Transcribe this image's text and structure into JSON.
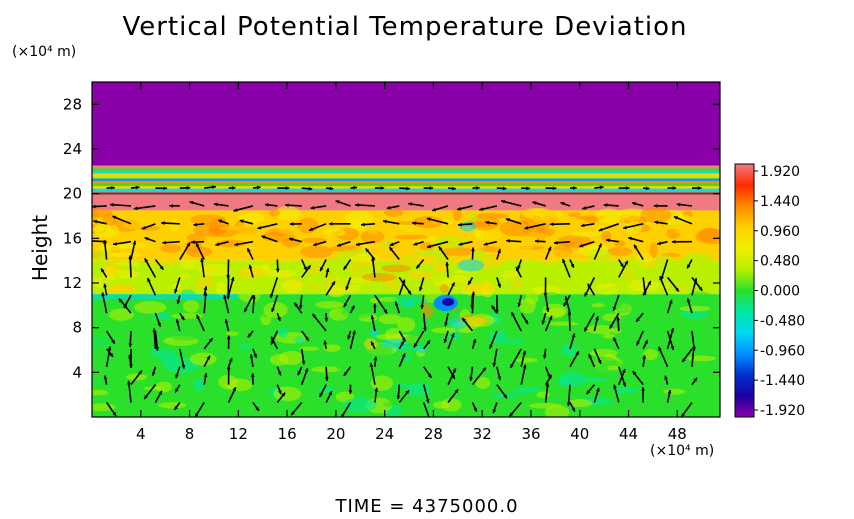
{
  "chart_data": {
    "type": "heatmap",
    "title": "Vertical Potential Temperature Deviation",
    "ylabel": "Height",
    "x_unit": "(×10⁴ m)",
    "y_unit": "(×10⁴ m)",
    "footer": "TIME  =  4375000.0",
    "xlim": [
      0,
      51.5
    ],
    "ylim": [
      0,
      30
    ],
    "x_ticks": [
      4,
      8,
      12,
      16,
      20,
      24,
      28,
      32,
      36,
      40,
      44,
      48
    ],
    "y_ticks": [
      4,
      8,
      12,
      16,
      20,
      24,
      28
    ],
    "colorbar": {
      "range": [
        -1.92,
        1.92
      ],
      "labels": [
        "1.920",
        "1.440",
        "0.960",
        "0.480",
        "0.000",
        "-0.480",
        "-0.960",
        "-1.440",
        "-1.920"
      ],
      "colors": [
        "#f07a82",
        "#ff2a00",
        "#ff8a00",
        "#ffd000",
        "#f0f000",
        "#b8f000",
        "#2ae02a",
        "#00e8a0",
        "#00d8f0",
        "#0090ff",
        "#0030d0",
        "#1a00a0",
        "#8a00a8"
      ]
    },
    "layers": [
      {
        "y_range": [
          22.5,
          30
        ],
        "value": -1.92,
        "description": "upper uniform region"
      },
      {
        "y_range": [
          20,
          22.5
        ],
        "value": 1.0,
        "description": "banded layer"
      },
      {
        "y_range": [
          18.5,
          20
        ],
        "value": 1.9
      },
      {
        "y_range": [
          14,
          18.5
        ],
        "value": 1.0
      },
      {
        "y_range": [
          11,
          14
        ],
        "value": 0.45
      },
      {
        "y_range": [
          0,
          11
        ],
        "value": 0.1
      }
    ],
    "vectors": "wind field arrows across domain"
  }
}
